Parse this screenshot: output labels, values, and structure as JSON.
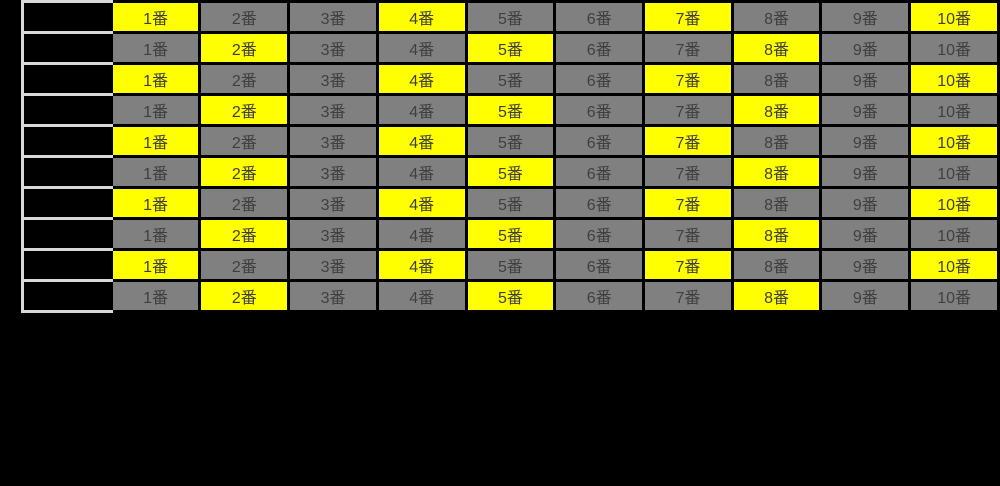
{
  "page": {
    "background": "#000000"
  },
  "table": {
    "column_labels": [
      "1番",
      "2番",
      "3番",
      "4番",
      "5番",
      "6番",
      "7番",
      "8番",
      "9番",
      "10番"
    ],
    "row_count": 10,
    "rows": [
      {
        "highlighted_columns": [
          1,
          4,
          7,
          10
        ]
      },
      {
        "highlighted_columns": [
          2,
          5,
          8
        ]
      },
      {
        "highlighted_columns": [
          1,
          4,
          7,
          10
        ]
      },
      {
        "highlighted_columns": [
          2,
          5,
          8
        ]
      },
      {
        "highlighted_columns": [
          1,
          4,
          7,
          10
        ]
      },
      {
        "highlighted_columns": [
          2,
          5,
          8
        ]
      },
      {
        "highlighted_columns": [
          1,
          4,
          7,
          10
        ]
      },
      {
        "highlighted_columns": [
          2,
          5,
          8
        ]
      },
      {
        "highlighted_columns": [
          1,
          4,
          7,
          10
        ]
      },
      {
        "highlighted_columns": [
          2,
          5,
          8
        ]
      }
    ],
    "colors": {
      "highlight_bg": "#ffff00",
      "normal_bg": "#808080",
      "cell_text": "#3f3f3f",
      "grid_border": "#000000",
      "label_cell_bg": "#000000",
      "label_cell_border": "#d9d9d9",
      "page_bg": "#000000"
    }
  }
}
